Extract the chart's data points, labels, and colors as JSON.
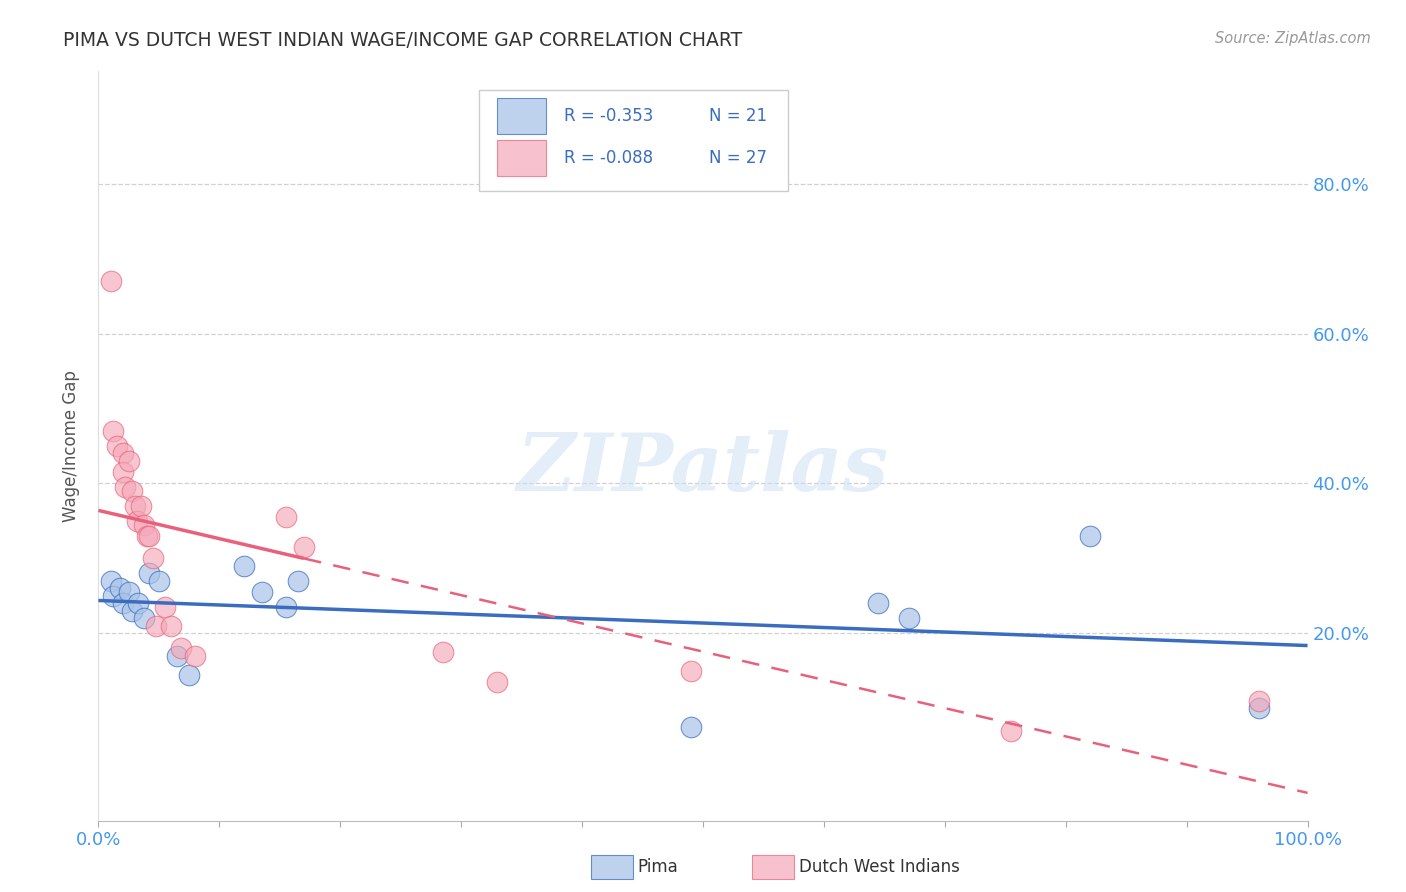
{
  "title": "PIMA VS DUTCH WEST INDIAN WAGE/INCOME GAP CORRELATION CHART",
  "source": "Source: ZipAtlas.com",
  "ylabel_label": "Wage/Income Gap",
  "xlim": [
    0.0,
    1.0
  ],
  "ylim": [
    -0.05,
    0.95
  ],
  "xticks": [
    0.0,
    1.0
  ],
  "xtick_labels": [
    "0.0%",
    "100.0%"
  ],
  "yticks_right": [
    0.2,
    0.4,
    0.6,
    0.8
  ],
  "ytick_labels_right": [
    "20.0%",
    "40.0%",
    "60.0%",
    "80.0%"
  ],
  "grid_yticks": [
    0.2,
    0.4,
    0.6,
    0.8
  ],
  "background_color": "#ffffff",
  "grid_color": "#cccccc",
  "legend_r_blue": "R = -0.353",
  "legend_n_blue": "N = 21",
  "legend_r_pink": "R = -0.088",
  "legend_n_pink": "N = 27",
  "blue_color": "#aac4e8",
  "pink_color": "#f4a8b8",
  "blue_line_color": "#3a6dbf",
  "pink_line_color": "#e8607a",
  "axis_label_color": "#4499ee",
  "title_color": "#333333",
  "source_color": "#999999",
  "ylabel_color": "#555555",
  "blue_scatter": [
    [
      0.01,
      0.27
    ],
    [
      0.012,
      0.25
    ],
    [
      0.018,
      0.26
    ],
    [
      0.02,
      0.24
    ],
    [
      0.025,
      0.255
    ],
    [
      0.028,
      0.23
    ],
    [
      0.033,
      0.24
    ],
    [
      0.038,
      0.22
    ],
    [
      0.042,
      0.28
    ],
    [
      0.05,
      0.27
    ],
    [
      0.065,
      0.17
    ],
    [
      0.075,
      0.145
    ],
    [
      0.12,
      0.29
    ],
    [
      0.135,
      0.255
    ],
    [
      0.155,
      0.235
    ],
    [
      0.165,
      0.27
    ],
    [
      0.49,
      0.075
    ],
    [
      0.645,
      0.24
    ],
    [
      0.67,
      0.22
    ],
    [
      0.82,
      0.33
    ],
    [
      0.96,
      0.1
    ]
  ],
  "pink_scatter": [
    [
      0.01,
      0.67
    ],
    [
      0.012,
      0.47
    ],
    [
      0.015,
      0.45
    ],
    [
      0.02,
      0.44
    ],
    [
      0.02,
      0.415
    ],
    [
      0.022,
      0.395
    ],
    [
      0.025,
      0.43
    ],
    [
      0.028,
      0.39
    ],
    [
      0.03,
      0.37
    ],
    [
      0.032,
      0.35
    ],
    [
      0.035,
      0.37
    ],
    [
      0.038,
      0.345
    ],
    [
      0.04,
      0.33
    ],
    [
      0.042,
      0.33
    ],
    [
      0.045,
      0.3
    ],
    [
      0.048,
      0.21
    ],
    [
      0.055,
      0.235
    ],
    [
      0.06,
      0.21
    ],
    [
      0.068,
      0.18
    ],
    [
      0.08,
      0.17
    ],
    [
      0.155,
      0.355
    ],
    [
      0.17,
      0.315
    ],
    [
      0.285,
      0.175
    ],
    [
      0.33,
      0.135
    ],
    [
      0.49,
      0.15
    ],
    [
      0.755,
      0.07
    ],
    [
      0.96,
      0.11
    ]
  ]
}
